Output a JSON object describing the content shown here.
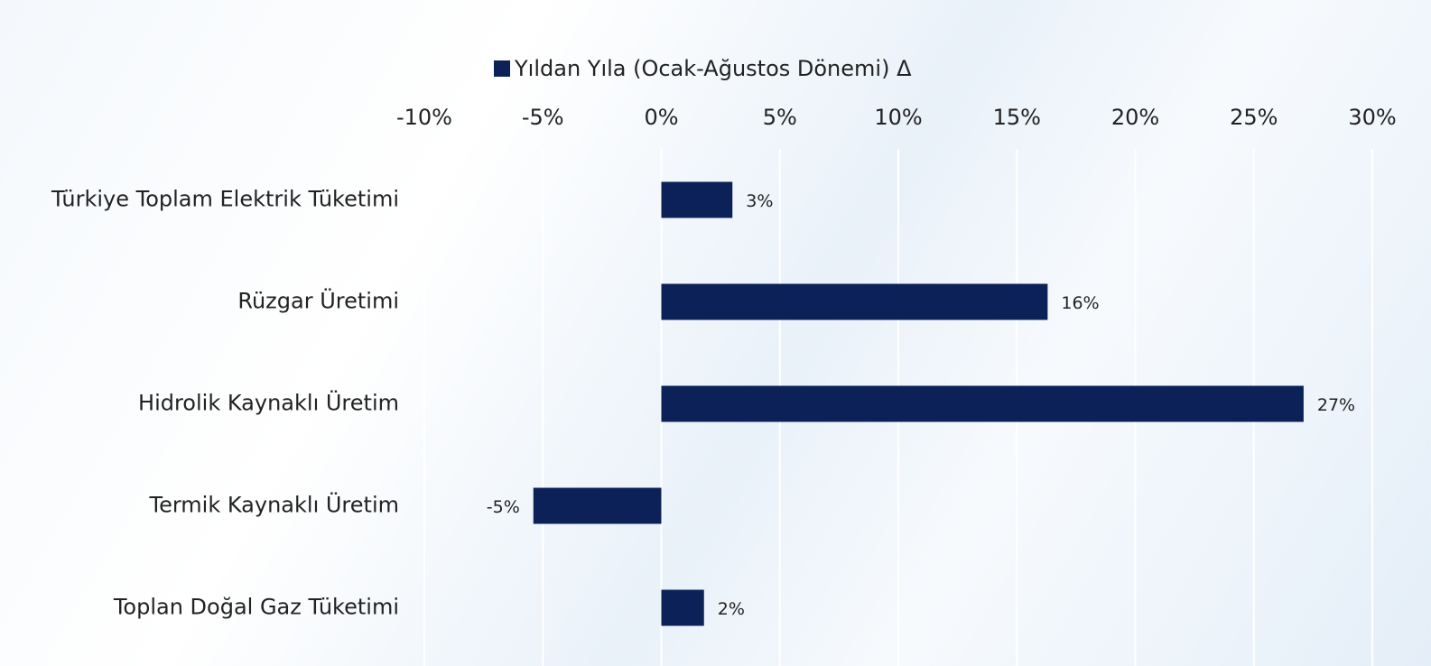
{
  "chart_data": {
    "type": "bar",
    "orientation": "horizontal",
    "categories": [
      "Türkiye Toplam Elektrik Tüketimi",
      "Rüzgar Üretimi",
      "Hidrolik Kaynaklı Üretim",
      "Termik Kaynaklı Üretim",
      "Toplan Doğal Gaz Tüketimi"
    ],
    "series": [
      {
        "name": "Yıldan Yıla (Ocak-Ağustos Dönemi) Δ",
        "color": "#0b2158",
        "values": [
          3,
          16.3,
          27.1,
          -5.4,
          1.8
        ],
        "value_labels": [
          "3%",
          "16%",
          "27%",
          "-5%",
          "2%"
        ]
      }
    ],
    "xlim": [
      -10,
      30
    ],
    "xticks": [
      {
        "value": -10,
        "label": "-10%"
      },
      {
        "value": -5,
        "label": "-5%"
      },
      {
        "value": 0,
        "label": "0%"
      },
      {
        "value": 5,
        "label": "5%"
      },
      {
        "value": 10,
        "label": "10%"
      },
      {
        "value": 15,
        "label": "15%"
      },
      {
        "value": 20,
        "label": "20%"
      },
      {
        "value": 25,
        "label": "25%"
      },
      {
        "value": 30,
        "label": "30%"
      }
    ],
    "grid": true,
    "legend": "top"
  }
}
